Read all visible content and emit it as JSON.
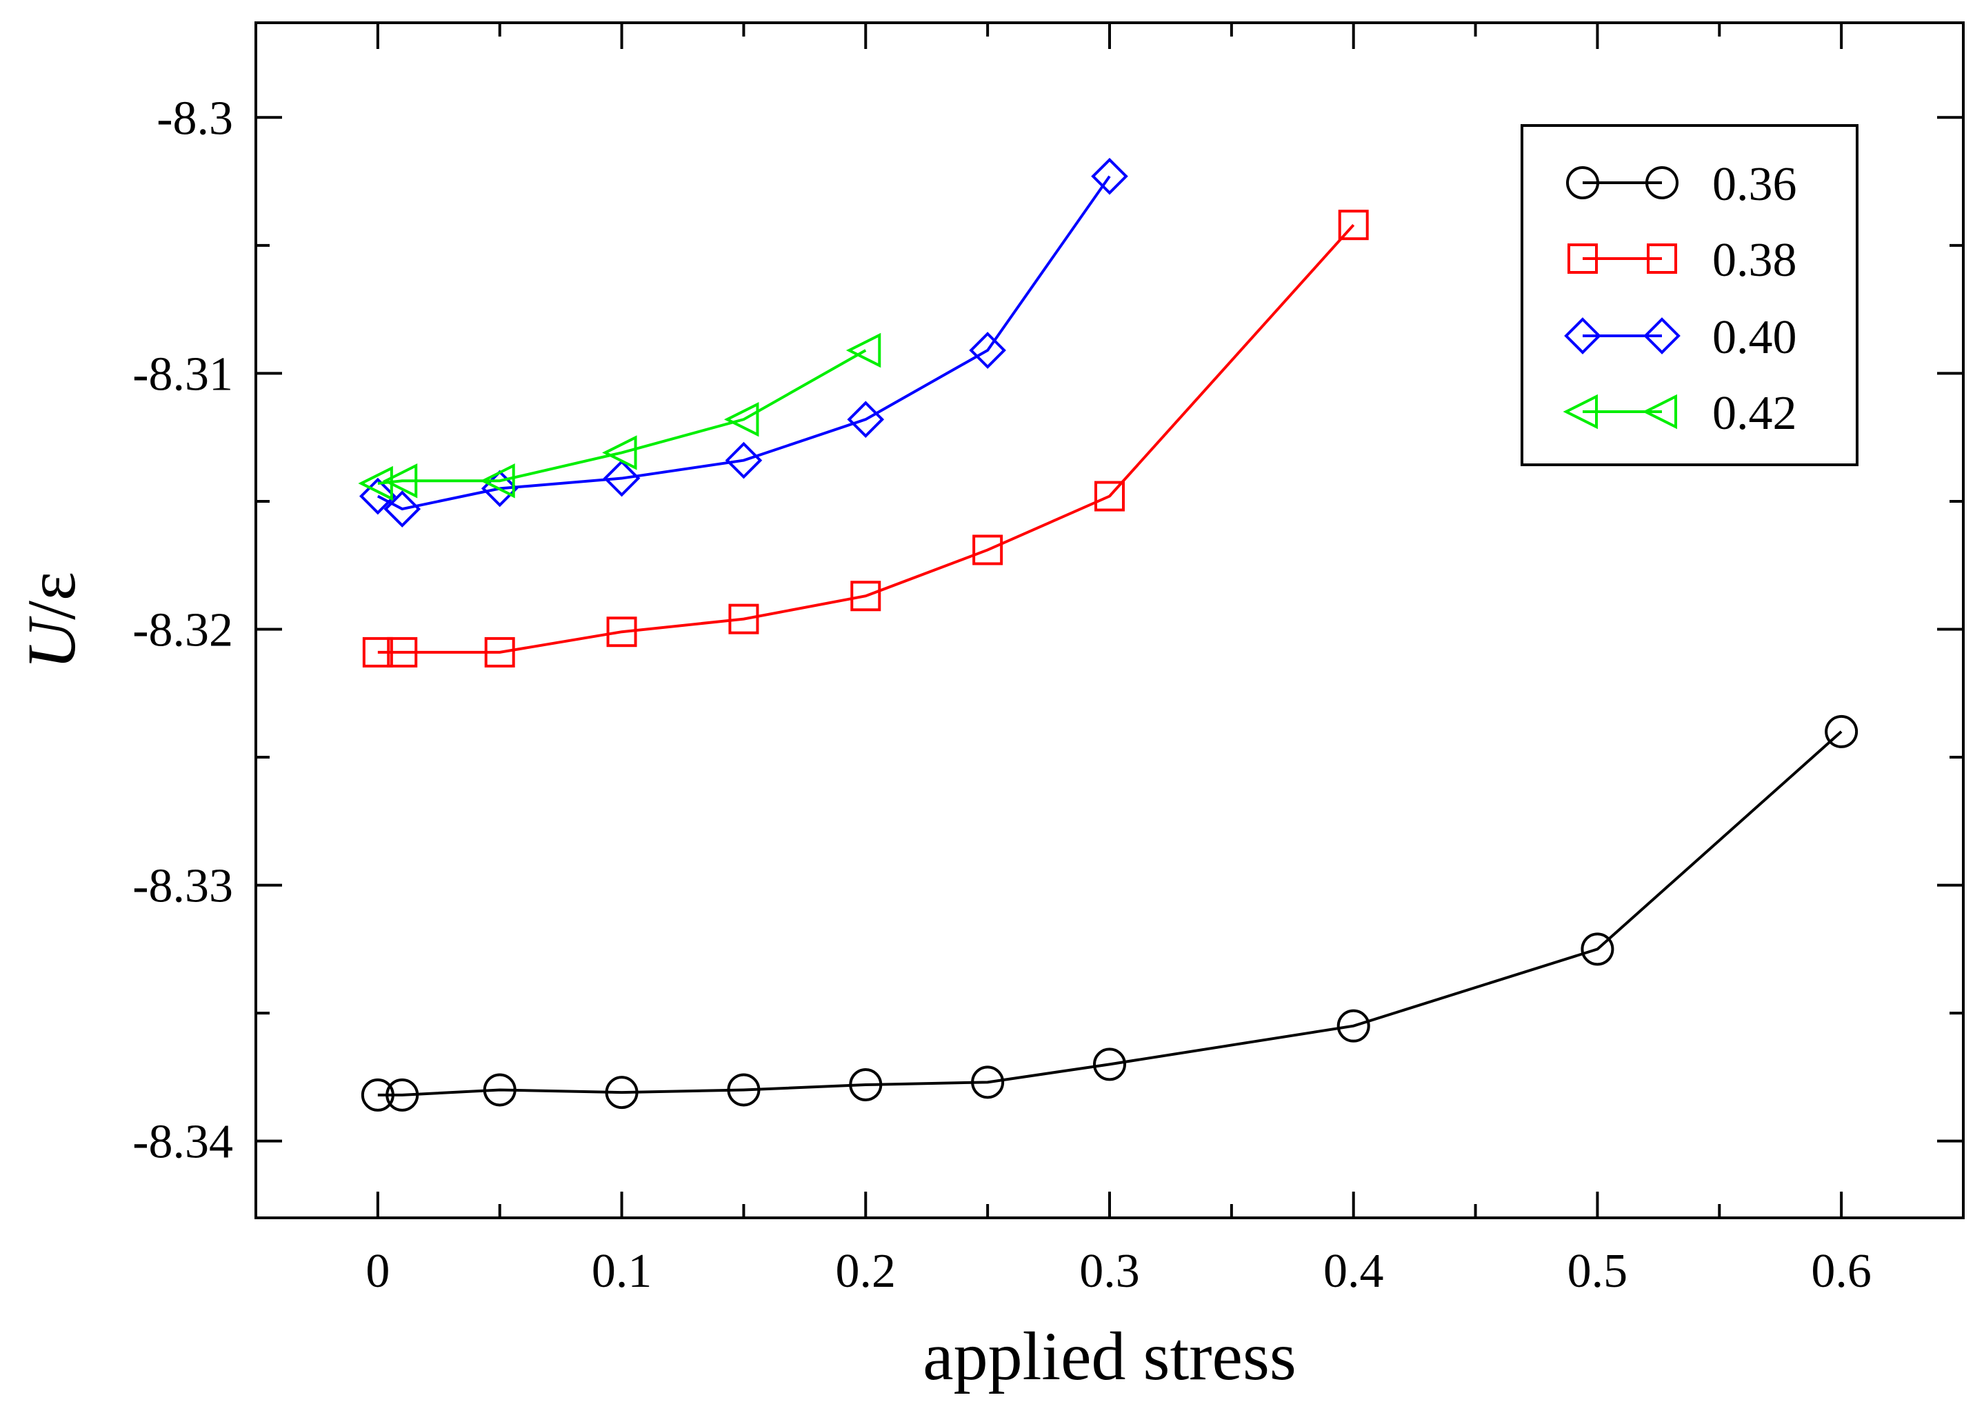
{
  "chart_data": {
    "type": "line",
    "xlabel": "applied stress",
    "ylabel_italic": "U",
    "ylabel_rest": "/ε",
    "xlim": [
      -0.05,
      0.65
    ],
    "ylim": [
      -8.343,
      -8.2963
    ],
    "xticks": [
      0,
      0.1,
      0.2,
      0.3,
      0.4,
      0.5,
      0.6
    ],
    "xtick_labels": [
      "0",
      "0.1",
      "0.2",
      "0.3",
      "0.4",
      "0.5",
      "0.6"
    ],
    "yticks": [
      -8.3,
      -8.31,
      -8.32,
      -8.33,
      -8.34
    ],
    "ytick_labels": [
      "-8.3",
      "-8.31",
      "-8.32",
      "-8.33",
      "-8.34"
    ],
    "grid": false,
    "legend_position": "top-right",
    "series": [
      {
        "name": "0.36",
        "color": "#000000",
        "marker": "circle",
        "x": [
          0,
          0.01,
          0.05,
          0.1,
          0.15,
          0.2,
          0.25,
          0.3,
          0.4,
          0.5,
          0.6
        ],
        "y": [
          -8.3382,
          -8.3382,
          -8.338,
          -8.3381,
          -8.338,
          -8.3378,
          -8.3377,
          -8.337,
          -8.3355,
          -8.3325,
          -8.324
        ]
      },
      {
        "name": "0.38",
        "color": "#ff0000",
        "marker": "square",
        "x": [
          0,
          0.01,
          0.05,
          0.1,
          0.15,
          0.2,
          0.25,
          0.3,
          0.4
        ],
        "y": [
          -8.3209,
          -8.3209,
          -8.3209,
          -8.3201,
          -8.3196,
          -8.3187,
          -8.3169,
          -8.3148,
          -8.3042
        ]
      },
      {
        "name": "0.40",
        "color": "#0000ff",
        "marker": "diamond",
        "x": [
          0,
          0.01,
          0.05,
          0.1,
          0.15,
          0.2,
          0.25,
          0.3
        ],
        "y": [
          -8.3148,
          -8.3153,
          -8.3145,
          -8.3141,
          -8.3134,
          -8.3118,
          -8.3091,
          -8.3023
        ]
      },
      {
        "name": "0.42",
        "color": "#00ee00",
        "marker": "triangle-left",
        "x": [
          0,
          0.01,
          0.05,
          0.1,
          0.15,
          0.2
        ],
        "y": [
          -8.3143,
          -8.3142,
          -8.3142,
          -8.3131,
          -8.3118,
          -8.3091
        ]
      }
    ]
  }
}
